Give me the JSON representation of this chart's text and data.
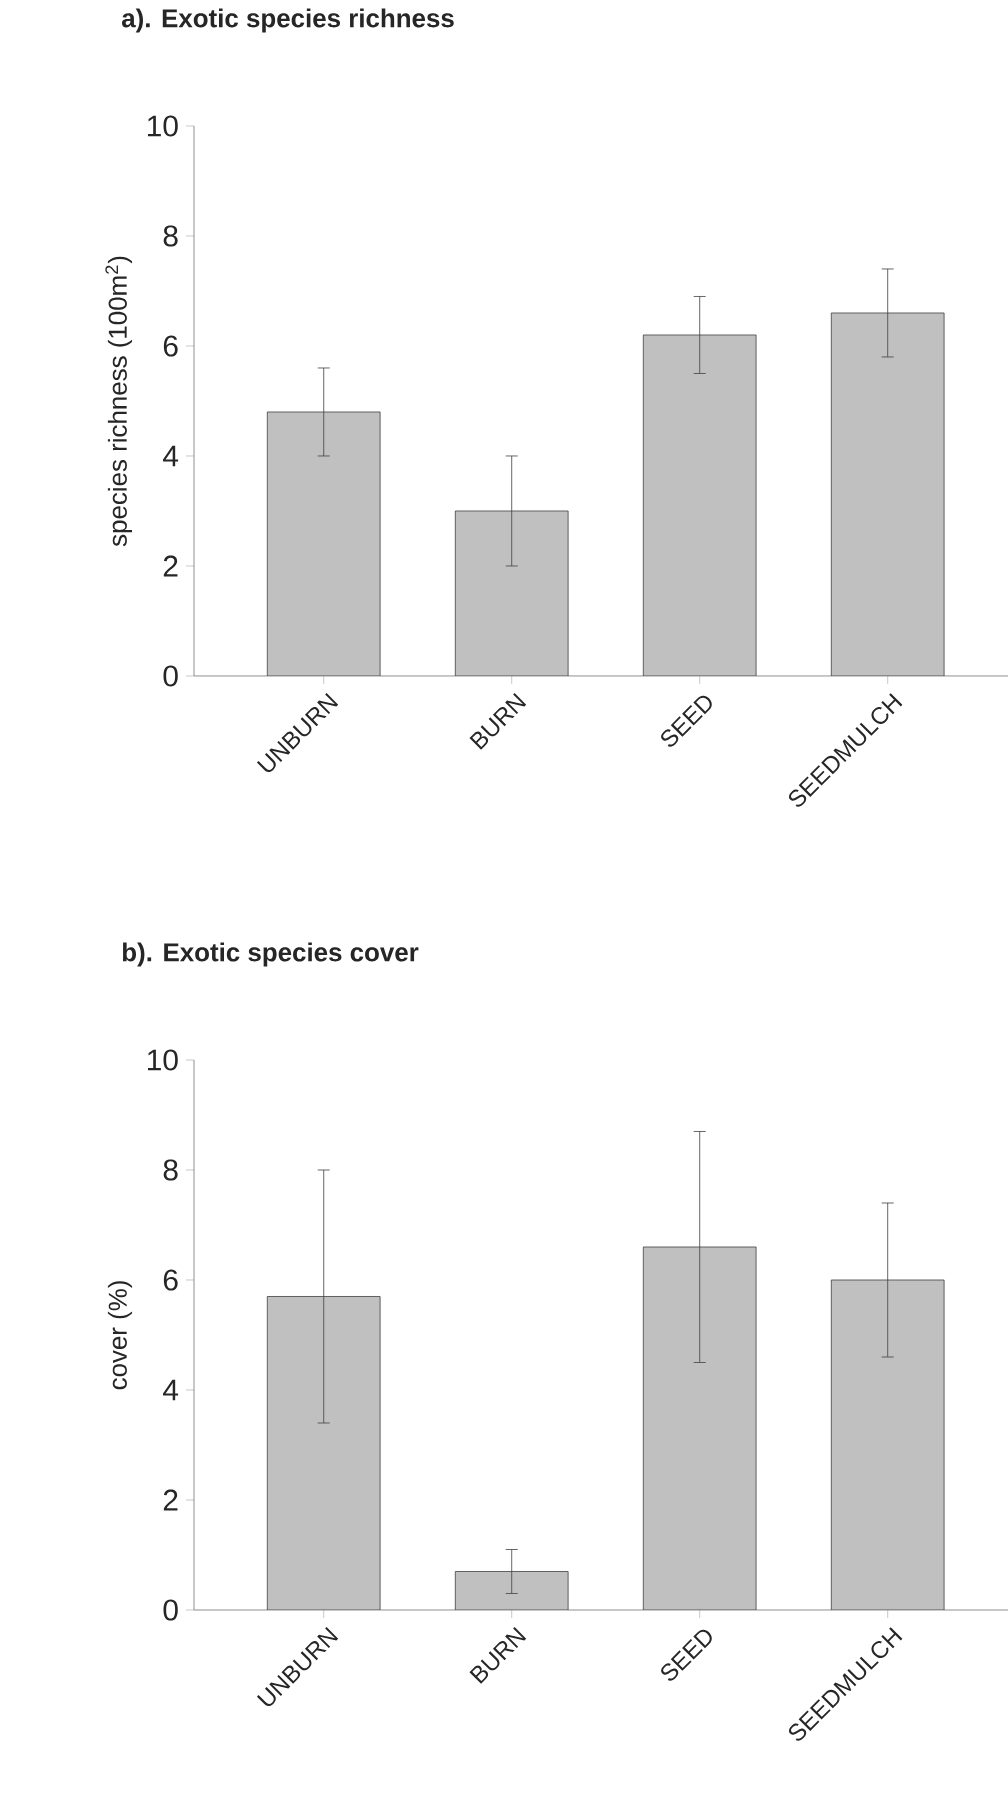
{
  "chart_data": [
    {
      "type": "bar",
      "title": "a). Exotic species richness",
      "ylabel": "species richness (100m$^{2}$)",
      "categories": [
        "UNBURN",
        "BURN",
        "SEED",
        "SEEDMULCH"
      ],
      "values": [
        4.8,
        3.0,
        6.2,
        6.6
      ],
      "errors": [
        0.8,
        1.0,
        0.7,
        0.8
      ],
      "color": "#c0c0c0",
      "ylim": [
        0,
        10
      ],
      "yticks": [
        0,
        2,
        4,
        6,
        8,
        10
      ]
    },
    {
      "type": "bar",
      "title": "b). Exotic species cover",
      "ylabel": "cover (%)",
      "categories": [
        "UNBURN",
        "BURN",
        "SEED",
        "SEEDMULCH"
      ],
      "values": [
        5.7,
        0.7,
        6.6,
        6.0
      ],
      "errors": [
        2.3,
        0.4,
        2.1,
        1.4
      ],
      "color": "#c0c0c0",
      "ylim": [
        0,
        10
      ],
      "yticks": [
        0,
        2,
        4,
        6,
        8,
        10
      ]
    }
  ]
}
